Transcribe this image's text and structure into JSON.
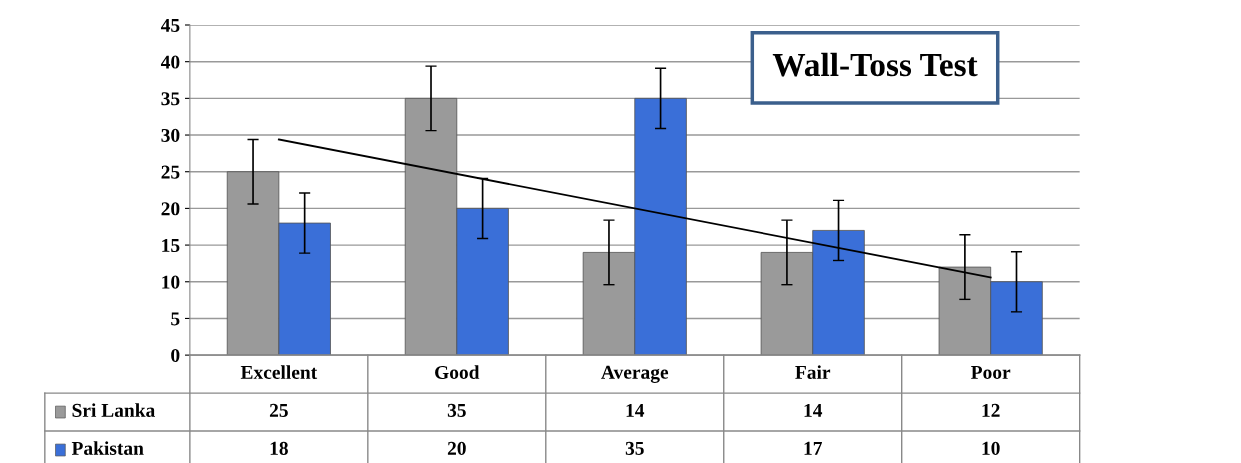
{
  "chart_data": {
    "type": "bar",
    "title": "Wall-Toss Test",
    "categories": [
      "Excellent",
      "Good",
      "Average",
      "Fair",
      "Poor"
    ],
    "series": [
      {
        "name": "Sri Lanka",
        "color": "#9a9a9a",
        "values": [
          25,
          35,
          14,
          14,
          12
        ],
        "value_labels": [
          "25",
          "35",
          "14",
          "14",
          "12"
        ],
        "errors": [
          4.4,
          4.4,
          4.4,
          4.4,
          4.4
        ]
      },
      {
        "name": "Pakistan",
        "color": "#3a6fd8",
        "values": [
          18,
          20,
          35,
          17,
          10
        ],
        "value_labels": [
          "18",
          "20",
          "35",
          "17",
          "10"
        ],
        "errors": [
          4.1,
          4.1,
          4.1,
          4.1,
          4.1
        ]
      },
      {
        "type": "line",
        "color": "#000000",
        "x": [
          "Excellent",
          "Poor"
        ],
        "values": [
          29.4,
          10.6
        ]
      }
    ],
    "ylim": [
      0,
      45
    ],
    "yticks": [
      0,
      5,
      10,
      15,
      20,
      25,
      30,
      35,
      40,
      45
    ],
    "grid": "y",
    "legend": "bottom"
  }
}
